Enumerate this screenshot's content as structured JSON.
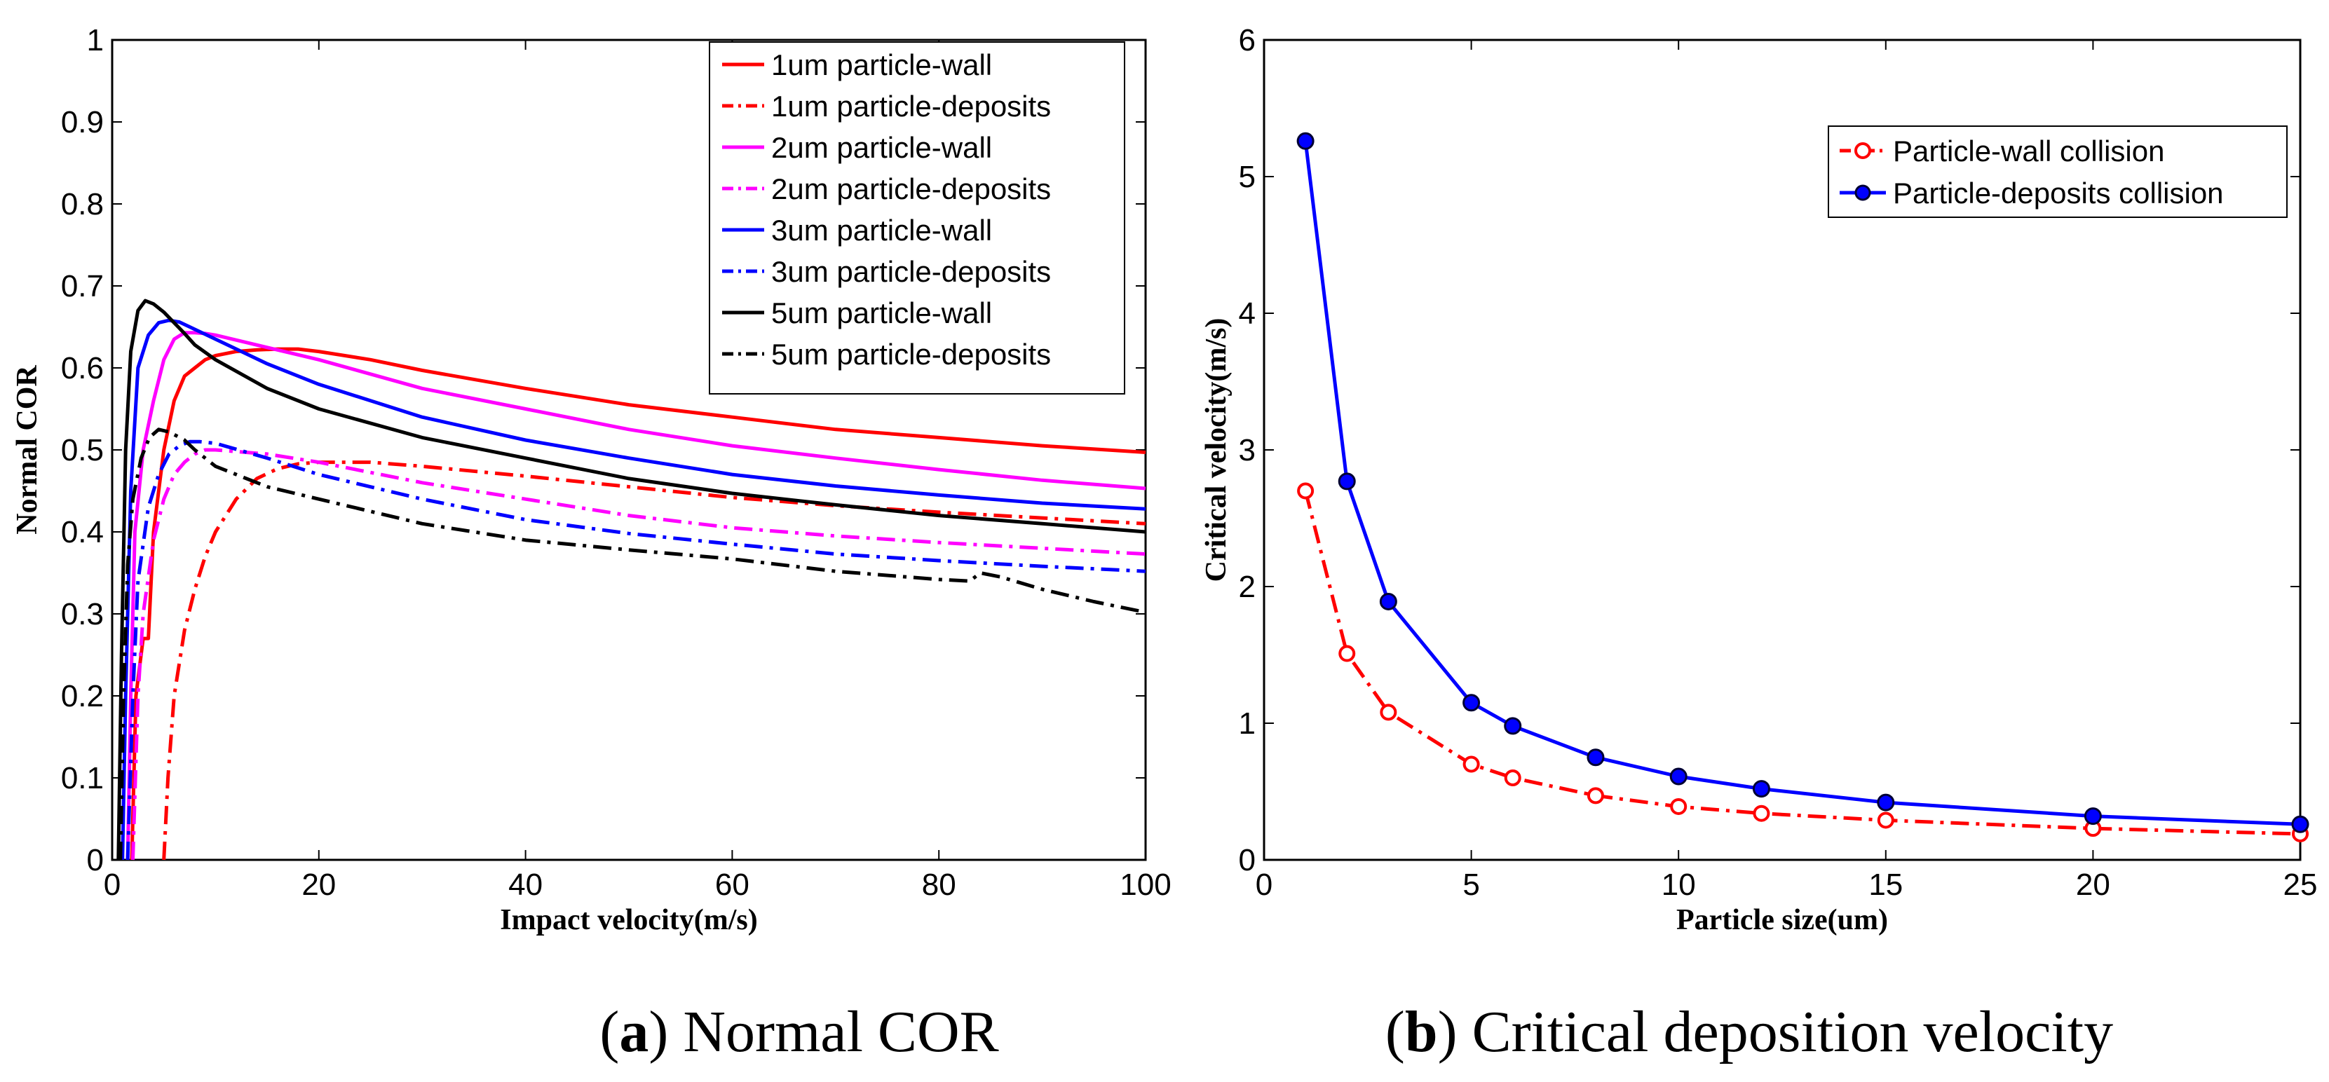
{
  "chart_data": [
    {
      "type": "line",
      "caption_letter": "a",
      "caption_text": "Normal COR",
      "xlabel": "Impact velocity(m/s)",
      "ylabel": "Normal COR",
      "xlim": [
        0,
        100
      ],
      "ylim": [
        0,
        1
      ],
      "xticks": [
        "0",
        "20",
        "40",
        "60",
        "80",
        "100"
      ],
      "yticks": [
        "0",
        "0.1",
        "0.2",
        "0.3",
        "0.4",
        "0.5",
        "0.6",
        "0.7",
        "0.8",
        "0.9",
        "1"
      ],
      "legend_position": "top-right",
      "series": [
        {
          "name": "1um particle-wall",
          "color": "#ff0000",
          "style": "solid",
          "x": [
            1.9,
            2.3,
            3.0,
            3.5,
            4.0,
            5.0,
            6.0,
            7.0,
            8.0,
            9.0,
            10,
            12,
            14,
            16,
            18,
            20,
            25,
            30,
            40,
            50,
            60,
            70,
            80,
            90,
            100
          ],
          "y": [
            0,
            0.2,
            0.27,
            0.27,
            0.4,
            0.5,
            0.56,
            0.59,
            0.6,
            0.61,
            0.615,
            0.62,
            0.622,
            0.623,
            0.623,
            0.62,
            0.61,
            0.597,
            0.575,
            0.555,
            0.54,
            0.525,
            0.515,
            0.505,
            0.497
          ]
        },
        {
          "name": "1um particle-deposits",
          "color": "#ff0000",
          "style": "dashdot",
          "x": [
            5.0,
            5.4,
            6.0,
            7.0,
            8.0,
            9.0,
            10,
            12,
            14,
            16,
            18,
            20,
            25,
            30,
            40,
            50,
            60,
            70,
            80,
            90,
            100
          ],
          "y": [
            0,
            0.1,
            0.2,
            0.28,
            0.33,
            0.37,
            0.4,
            0.44,
            0.465,
            0.477,
            0.483,
            0.485,
            0.485,
            0.48,
            0.468,
            0.455,
            0.442,
            0.432,
            0.424,
            0.417,
            0.41
          ]
        },
        {
          "name": "2um particle-wall",
          "color": "#ff00ff",
          "style": "solid",
          "x": [
            1.5,
            1.8,
            2.2,
            3.0,
            4.0,
            5.0,
            6.0,
            7.0,
            8.0,
            9.0,
            10,
            15,
            20,
            30,
            40,
            50,
            60,
            70,
            80,
            90,
            100
          ],
          "y": [
            0,
            0.2,
            0.4,
            0.5,
            0.56,
            0.61,
            0.635,
            0.643,
            0.643,
            0.642,
            0.64,
            0.625,
            0.61,
            0.575,
            0.55,
            0.525,
            0.505,
            0.49,
            0.476,
            0.463,
            0.453
          ]
        },
        {
          "name": "2um particle-deposits",
          "color": "#ff00ff",
          "style": "dashdot",
          "x": [
            2.0,
            2.5,
            3.0,
            4.0,
            5.0,
            6.0,
            7.0,
            8.0,
            9.0,
            10,
            15,
            20,
            30,
            40,
            50,
            60,
            70,
            80,
            90,
            100
          ],
          "y": [
            0,
            0.2,
            0.3,
            0.39,
            0.44,
            0.47,
            0.485,
            0.495,
            0.5,
            0.5,
            0.495,
            0.485,
            0.46,
            0.44,
            0.42,
            0.405,
            0.395,
            0.387,
            0.38,
            0.373
          ]
        },
        {
          "name": "3um particle-wall",
          "color": "#0000ff",
          "style": "solid",
          "x": [
            1.0,
            1.3,
            1.8,
            2.5,
            3.5,
            4.5,
            5.5,
            6.5,
            7.5,
            10,
            15,
            20,
            30,
            40,
            50,
            60,
            70,
            80,
            90,
            100
          ],
          "y": [
            0,
            0.2,
            0.45,
            0.6,
            0.64,
            0.655,
            0.658,
            0.656,
            0.65,
            0.635,
            0.605,
            0.58,
            0.54,
            0.512,
            0.49,
            0.47,
            0.456,
            0.445,
            0.435,
            0.428
          ]
        },
        {
          "name": "3um particle-deposits",
          "color": "#0000ff",
          "style": "dashdot",
          "x": [
            1.5,
            2.0,
            2.5,
            3.5,
            4.5,
            5.5,
            6.5,
            7.5,
            8.5,
            10,
            15,
            20,
            30,
            40,
            50,
            60,
            70,
            80,
            90,
            100
          ],
          "y": [
            0,
            0.2,
            0.34,
            0.43,
            0.47,
            0.495,
            0.505,
            0.51,
            0.51,
            0.508,
            0.49,
            0.47,
            0.44,
            0.415,
            0.398,
            0.385,
            0.373,
            0.365,
            0.358,
            0.352
          ]
        },
        {
          "name": "5um particle-wall",
          "color": "#000000",
          "style": "solid",
          "x": [
            0.6,
            0.9,
            1.3,
            1.8,
            2.5,
            3.2,
            4.0,
            5.0,
            6.0,
            7.0,
            8.0,
            10,
            15,
            20,
            30,
            40,
            50,
            60,
            70,
            80,
            90,
            100
          ],
          "y": [
            0,
            0.25,
            0.5,
            0.62,
            0.67,
            0.682,
            0.678,
            0.668,
            0.655,
            0.642,
            0.628,
            0.61,
            0.575,
            0.55,
            0.515,
            0.49,
            0.465,
            0.447,
            0.433,
            0.42,
            0.41,
            0.4
          ]
        },
        {
          "name": "5um particle-deposits",
          "color": "#000000",
          "style": "dashdot",
          "x": [
            0.8,
            1.1,
            1.5,
            2.0,
            2.8,
            3.6,
            4.5,
            5.5,
            7.0,
            8.0,
            10,
            15,
            20,
            30,
            40,
            50,
            60,
            70,
            80,
            83,
            84,
            86,
            90,
            95,
            100
          ],
          "y": [
            0,
            0.2,
            0.36,
            0.44,
            0.49,
            0.515,
            0.525,
            0.522,
            0.512,
            0.5,
            0.48,
            0.455,
            0.44,
            0.41,
            0.39,
            0.378,
            0.367,
            0.352,
            0.342,
            0.34,
            0.35,
            0.345,
            0.33,
            0.315,
            0.302
          ]
        }
      ]
    },
    {
      "type": "line",
      "caption_letter": "b",
      "caption_text": "Critical deposition velocity",
      "xlabel": "Particle size(um)",
      "ylabel": "Critical velocity(m/s)",
      "xlim": [
        0,
        25
      ],
      "ylim": [
        0,
        6
      ],
      "xticks": [
        "0",
        "5",
        "10",
        "15",
        "20",
        "25"
      ],
      "yticks": [
        "0",
        "1",
        "2",
        "3",
        "4",
        "5",
        "6"
      ],
      "legend_position": "top-right",
      "series": [
        {
          "name": "Particle-wall collision",
          "color": "#ff0000",
          "style": "dashdot",
          "marker": "open-circle",
          "x": [
            1,
            2,
            3,
            5,
            6,
            8,
            10,
            12,
            15,
            20,
            25
          ],
          "y": [
            2.7,
            1.51,
            1.08,
            0.7,
            0.6,
            0.47,
            0.39,
            0.34,
            0.29,
            0.23,
            0.19
          ]
        },
        {
          "name": "Particle-deposits collision",
          "color": "#0000ff",
          "style": "solid",
          "marker": "filled-circle",
          "x": [
            1,
            2,
            3,
            5,
            6,
            8,
            10,
            12,
            15,
            20,
            25
          ],
          "y": [
            5.26,
            2.77,
            1.89,
            1.15,
            0.98,
            0.75,
            0.61,
            0.52,
            0.42,
            0.32,
            0.26
          ]
        }
      ]
    }
  ]
}
